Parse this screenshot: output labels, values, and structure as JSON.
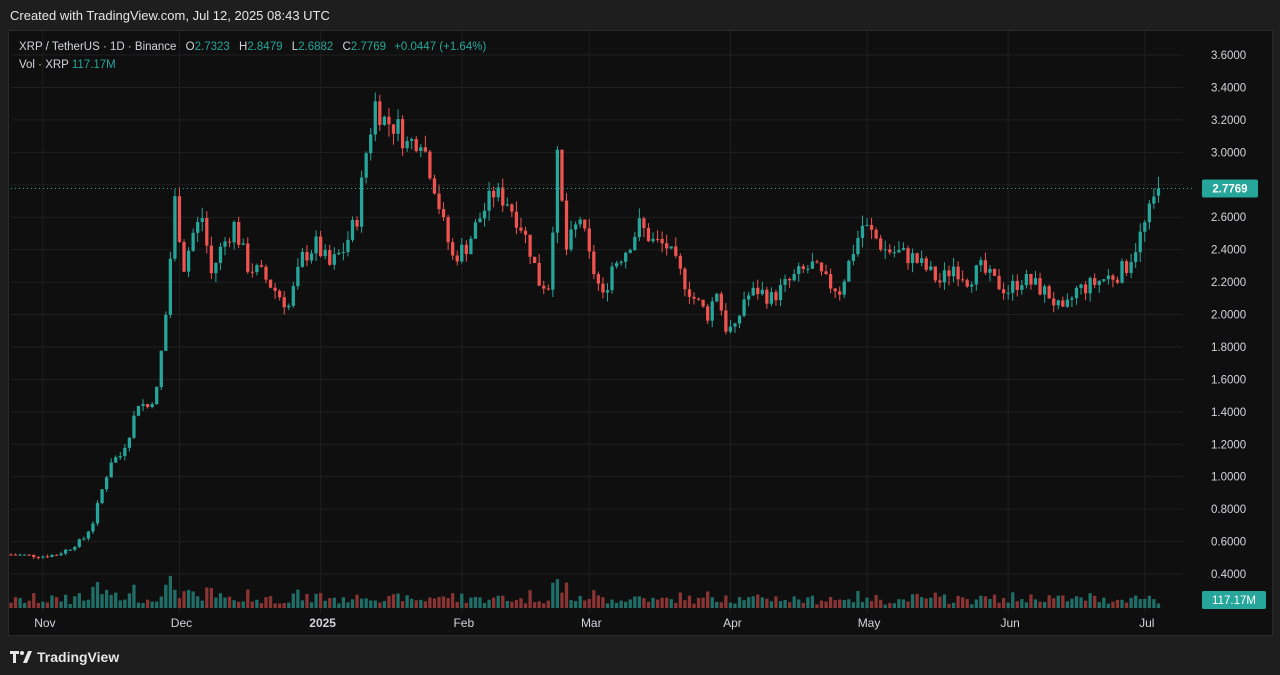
{
  "header": {
    "created_text": "Created with TradingView.com, Jul 12, 2025 08:43 UTC"
  },
  "legend": {
    "symbol": "XRP / TetherUS · 1D · Binance",
    "open_key": "O",
    "open": "2.7323",
    "high_key": "H",
    "high": "2.8479",
    "low_key": "L",
    "low": "2.6882",
    "close_key": "C",
    "close": "2.7769",
    "change": "+0.0447 (+1.64%)",
    "vol_key": "Vol · XRP",
    "vol": "117.17M"
  },
  "footer": {
    "brand": "TradingView"
  },
  "colors": {
    "up": "#26a69a",
    "down": "#ef5350",
    "up_vol": "#1f6f68",
    "down_vol": "#8b3434",
    "price_badge": "#26a69a",
    "grid": "#1f1f1f",
    "axis_text": "#d1d4dc"
  },
  "chart_data": {
    "type": "candlestick",
    "symbol": "XRP/USDT",
    "interval": "1D",
    "y_ticks": [
      "3.6000",
      "3.4000",
      "3.2000",
      "3.0000",
      "2.8000",
      "2.6000",
      "2.4000",
      "2.2000",
      "2.0000",
      "1.8000",
      "1.6000",
      "1.4000",
      "1.2000",
      "1.0000",
      "0.8000",
      "0.6000",
      "0.4000"
    ],
    "ylim": [
      0.28,
      3.73
    ],
    "x_ticks": [
      {
        "label": "Nov",
        "day": 0
      },
      {
        "label": "Dec",
        "day": 30
      },
      {
        "label": "2025",
        "day": 61
      },
      {
        "label": "Feb",
        "day": 92
      },
      {
        "label": "Mar",
        "day": 120
      },
      {
        "label": "Apr",
        "day": 151
      },
      {
        "label": "May",
        "day": 181
      },
      {
        "label": "Jun",
        "day": 212
      },
      {
        "label": "Jul",
        "day": 242
      }
    ],
    "last_price": "2.7769",
    "last_volume": "117.17M",
    "grid": true,
    "keypoints": [
      [
        -7,
        0.52
      ],
      [
        0,
        0.51
      ],
      [
        3,
        0.52
      ],
      [
        6,
        0.56
      ],
      [
        9,
        0.62
      ],
      [
        11,
        0.72
      ],
      [
        13,
        0.92
      ],
      [
        15,
        1.1
      ],
      [
        17,
        1.13
      ],
      [
        19,
        1.27
      ],
      [
        21,
        1.46
      ],
      [
        23,
        1.43
      ],
      [
        25,
        1.53
      ],
      [
        27,
        2.0
      ],
      [
        29,
        2.7
      ],
      [
        31,
        2.3
      ],
      [
        33,
        2.5
      ],
      [
        35,
        2.6
      ],
      [
        37,
        2.25
      ],
      [
        39,
        2.4
      ],
      [
        42,
        2.55
      ],
      [
        45,
        2.3
      ],
      [
        48,
        2.25
      ],
      [
        51,
        2.15
      ],
      [
        54,
        2.05
      ],
      [
        57,
        2.35
      ],
      [
        60,
        2.43
      ],
      [
        63,
        2.3
      ],
      [
        66,
        2.4
      ],
      [
        69,
        2.6
      ],
      [
        71,
        3.0
      ],
      [
        73,
        3.3
      ],
      [
        75,
        3.2
      ],
      [
        78,
        3.15
      ],
      [
        80,
        3.05
      ],
      [
        83,
        3.1
      ],
      [
        86,
        2.8
      ],
      [
        88,
        2.55
      ],
      [
        90,
        2.35
      ],
      [
        93,
        2.42
      ],
      [
        96,
        2.6
      ],
      [
        99,
        2.75
      ],
      [
        102,
        2.7
      ],
      [
        105,
        2.55
      ],
      [
        107,
        2.4
      ],
      [
        109,
        2.2
      ],
      [
        111,
        2.18
      ],
      [
        113,
        2.95
      ],
      [
        115,
        2.4
      ],
      [
        118,
        2.6
      ],
      [
        120,
        2.35
      ],
      [
        123,
        2.1
      ],
      [
        125,
        2.3
      ],
      [
        128,
        2.4
      ],
      [
        131,
        2.55
      ],
      [
        134,
        2.45
      ],
      [
        137,
        2.42
      ],
      [
        140,
        2.25
      ],
      [
        143,
        2.1
      ],
      [
        146,
        2.0
      ],
      [
        148,
        2.15
      ],
      [
        150,
        1.92
      ],
      [
        152,
        1.9
      ],
      [
        154,
        2.1
      ],
      [
        157,
        2.15
      ],
      [
        160,
        2.1
      ],
      [
        163,
        2.18
      ],
      [
        166,
        2.25
      ],
      [
        169,
        2.3
      ],
      [
        172,
        2.2
      ],
      [
        175,
        2.15
      ],
      [
        178,
        2.4
      ],
      [
        180,
        2.55
      ],
      [
        182,
        2.5
      ],
      [
        185,
        2.4
      ],
      [
        188,
        2.38
      ],
      [
        191,
        2.35
      ],
      [
        194,
        2.28
      ],
      [
        197,
        2.2
      ],
      [
        200,
        2.3
      ],
      [
        203,
        2.22
      ],
      [
        206,
        2.28
      ],
      [
        209,
        2.2
      ],
      [
        212,
        2.15
      ],
      [
        215,
        2.22
      ],
      [
        218,
        2.18
      ],
      [
        221,
        2.12
      ],
      [
        224,
        2.0
      ],
      [
        227,
        2.15
      ],
      [
        230,
        2.18
      ],
      [
        233,
        2.22
      ],
      [
        236,
        2.25
      ],
      [
        238,
        2.3
      ],
      [
        240,
        2.42
      ],
      [
        242,
        2.55
      ],
      [
        244,
        2.7
      ],
      [
        245,
        2.78
      ]
    ]
  }
}
